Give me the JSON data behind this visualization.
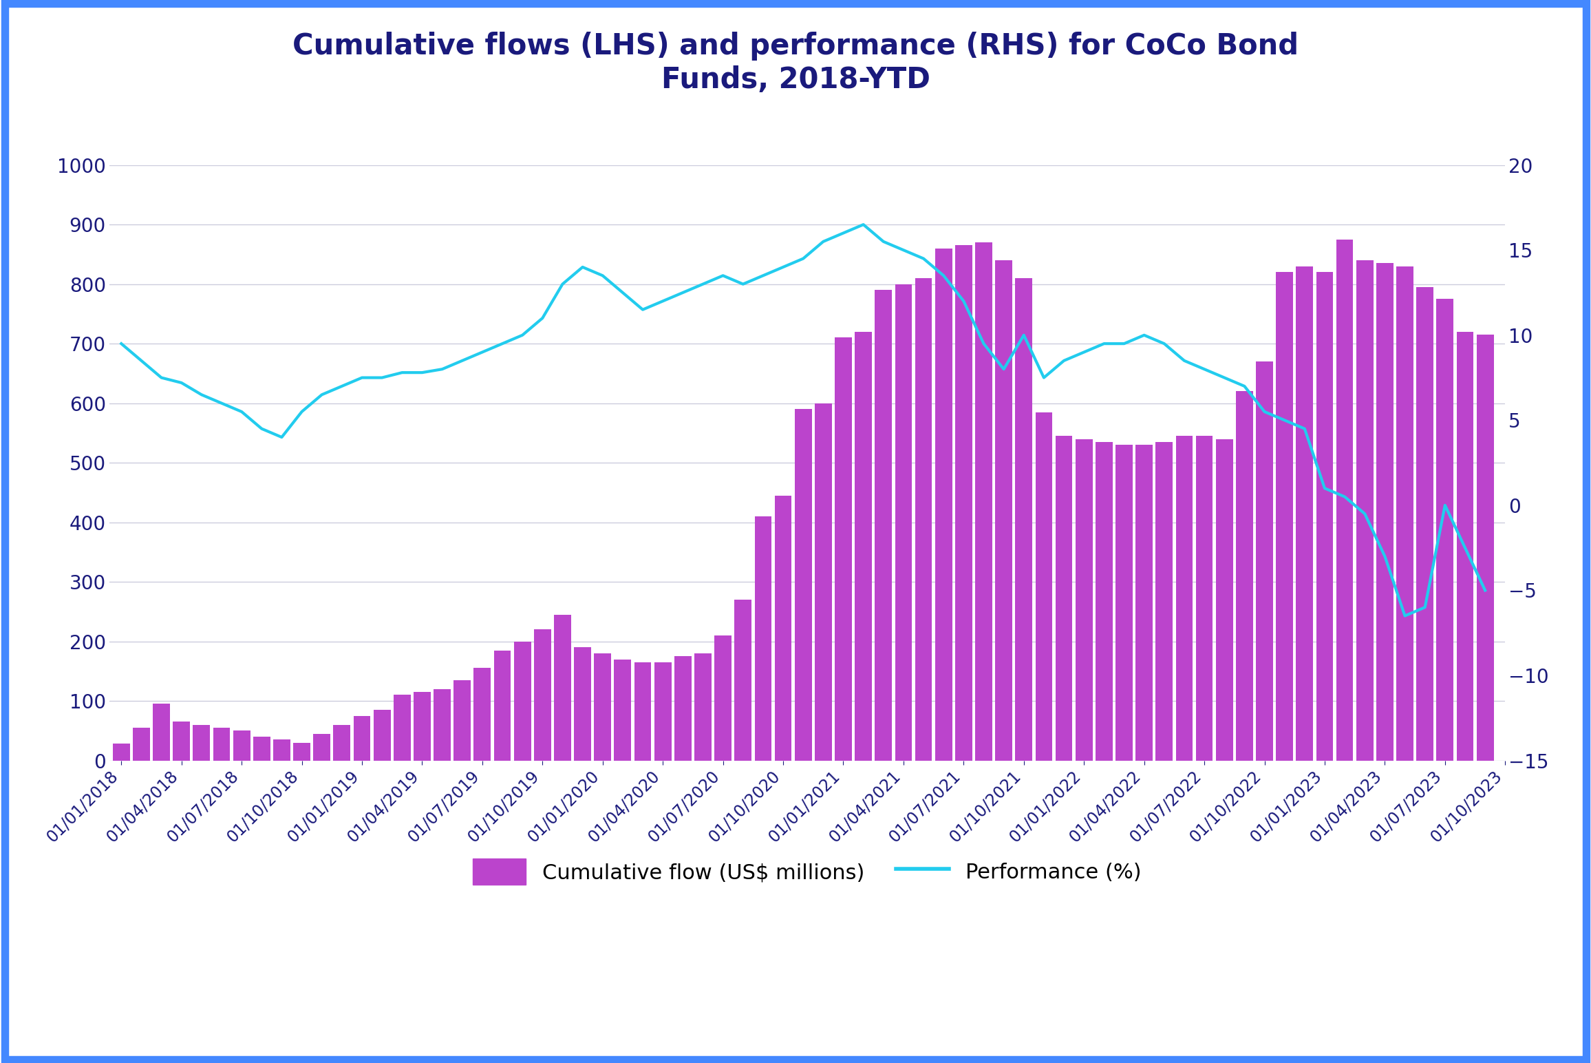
{
  "title": "Cumulative flows (LHS) and performance (RHS) for CoCo Bond\nFunds, 2018-YTD",
  "title_color": "#1a1a7c",
  "background_color": "#ffffff",
  "border_color": "#4488ff",
  "bar_color": "#bb44cc",
  "line_color": "#22ccee",
  "line_width": 3.0,
  "ylim_left": [
    0,
    1000
  ],
  "ylim_right": [
    -15,
    20
  ],
  "yticks_left": [
    0,
    100,
    200,
    300,
    400,
    500,
    600,
    700,
    800,
    900,
    1000
  ],
  "yticks_right": [
    -15,
    -10,
    -5,
    0,
    5,
    10,
    15,
    20
  ],
  "tick_color": "#1a1a7c",
  "grid_color": "#ccccdd",
  "legend_flow_label": "Cumulative flow (US$ millions)",
  "legend_perf_label": "Performance (%)",
  "flow_data": [
    28,
    55,
    95,
    65,
    60,
    55,
    50,
    40,
    35,
    30,
    45,
    60,
    75,
    85,
    110,
    115,
    120,
    135,
    155,
    185,
    200,
    220,
    245,
    190,
    180,
    170,
    165,
    165,
    175,
    180,
    210,
    270,
    410,
    445,
    590,
    600,
    710,
    720,
    790,
    800,
    810,
    860,
    865,
    870,
    840,
    810,
    585,
    545,
    540,
    535,
    530,
    530,
    535,
    545,
    545,
    540,
    620,
    670,
    820,
    830,
    820,
    875,
    840,
    835,
    830,
    795,
    775,
    720,
    715
  ],
  "perf_data": [
    9.5,
    8.5,
    7.5,
    7.2,
    6.5,
    6.0,
    5.5,
    4.5,
    4.0,
    5.5,
    6.5,
    7.0,
    7.5,
    7.5,
    7.8,
    7.8,
    8.0,
    8.5,
    9.0,
    9.5,
    10.0,
    11.0,
    13.0,
    14.0,
    13.5,
    12.5,
    11.5,
    12.0,
    12.5,
    13.0,
    13.5,
    13.0,
    13.5,
    14.0,
    14.5,
    15.5,
    16.0,
    16.5,
    15.5,
    15.0,
    14.5,
    13.5,
    12.0,
    9.5,
    8.0,
    10.0,
    7.5,
    8.5,
    9.0,
    9.5,
    9.5,
    10.0,
    9.5,
    8.5,
    8.0,
    7.5,
    7.0,
    5.5,
    5.0,
    4.5,
    1.0,
    0.5,
    -0.5,
    -3.0,
    -6.5,
    -6.0,
    0.0,
    -2.5,
    -5.0
  ],
  "xlabels": [
    "01/01/2018",
    "",
    "",
    "01/04/2018",
    "",
    "",
    "01/07/2018",
    "",
    "",
    "01/10/2018",
    "",
    "",
    "01/01/2019",
    "",
    "",
    "01/04/2019",
    "",
    "",
    "01/07/2019",
    "",
    "",
    "01/10/2019",
    "",
    "",
    "01/01/2020",
    "",
    "",
    "01/04/2020",
    "",
    "",
    "01/07/2020",
    "",
    "",
    "01/10/2020",
    "",
    "",
    "01/01/2021",
    "",
    "",
    "01/04/2021",
    "",
    "",
    "01/07/2021",
    "",
    "",
    "01/10/2021",
    "",
    "",
    "01/01/2022",
    "",
    "",
    "01/04/2022",
    "",
    "",
    "01/07/2022",
    "",
    "",
    "01/10/2022",
    "",
    "",
    "01/01/2023",
    "",
    "",
    "01/04/2023",
    "",
    "",
    "01/07/2023",
    "",
    "",
    "01/10/2023"
  ],
  "xtick_positions": [
    0,
    3,
    6,
    9,
    12,
    15,
    18,
    21,
    24,
    27,
    30,
    33,
    36,
    39,
    42,
    45,
    48,
    51,
    54,
    57,
    60,
    63,
    66,
    69
  ],
  "xtick_labels": [
    "01/01/2018",
    "01/04/2018",
    "01/07/2018",
    "01/10/2018",
    "01/01/2019",
    "01/04/2019",
    "01/07/2019",
    "01/10/2019",
    "01/01/2020",
    "01/04/2020",
    "01/07/2020",
    "01/10/2020",
    "01/01/2021",
    "01/04/2021",
    "01/07/2021",
    "01/10/2021",
    "01/01/2022",
    "01/04/2022",
    "01/07/2022",
    "01/10/2022",
    "01/01/2023",
    "01/04/2023",
    "01/07/2023",
    "01/10/2023"
  ]
}
